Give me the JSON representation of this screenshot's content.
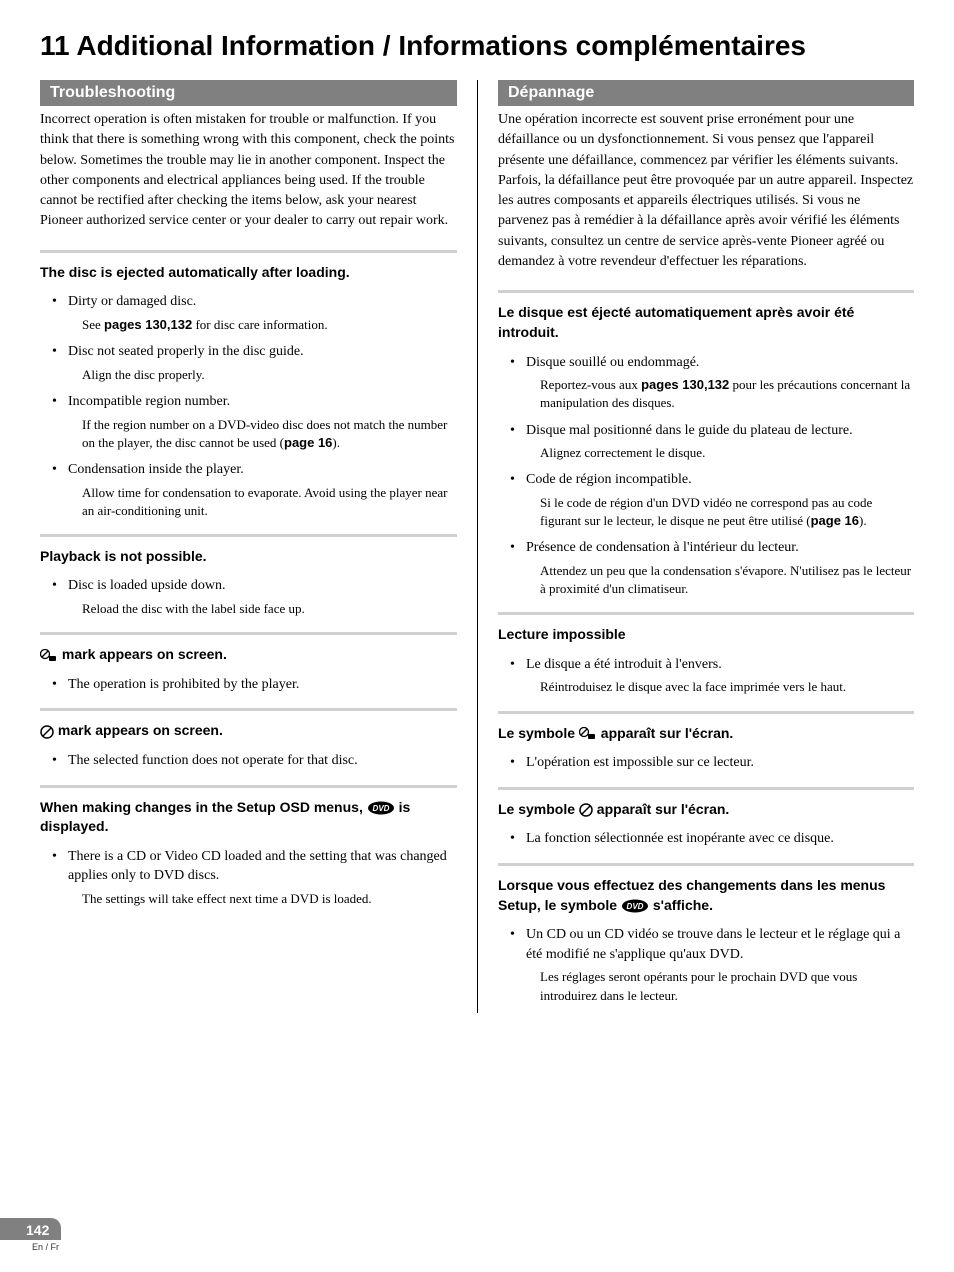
{
  "chapter": {
    "number": "11",
    "title": "Additional Information / Informations complémentaires"
  },
  "left": {
    "header": "Troubleshooting",
    "intro": "Incorrect operation is often mistaken for trouble or malfunction. If you think that there is something wrong with this component, check the points below. Sometimes the trouble may lie in another component. Inspect the other components and electrical appliances being used. If the trouble cannot be rectified after checking the items below, ask your nearest Pioneer authorized service center or your dealer to carry out repair work.",
    "sections": [
      {
        "title": "The disc is ejected automatically after loading.",
        "items": [
          {
            "text": "Dirty or damaged disc.",
            "sub_pre": "See ",
            "sub_bold": "pages 130,132",
            "sub_post": " for disc care information."
          },
          {
            "text": "Disc not seated properly in the disc guide.",
            "sub": "Align the disc properly."
          },
          {
            "text": "Incompatible region number.",
            "sub_pre": "If the region number on a DVD-video disc does not match the number on the player, the disc cannot be used (",
            "sub_bold": "page 16",
            "sub_post": ")."
          },
          {
            "text": "Condensation inside the player.",
            "sub": "Allow time for condensation to evaporate. Avoid using the player near an air-conditioning unit."
          }
        ]
      },
      {
        "title": "Playback is not possible.",
        "items": [
          {
            "text": "Disc is loaded upside down.",
            "sub": "Reload the disc with the label side face up."
          }
        ]
      },
      {
        "icon": "hand",
        "title_post": " mark appears on screen.",
        "items": [
          {
            "text": "The operation is prohibited by the player."
          }
        ]
      },
      {
        "icon": "prohibit",
        "title_post": " mark appears on screen.",
        "items": [
          {
            "text": "The selected function does not operate for that disc."
          }
        ]
      },
      {
        "title_pre": "When making changes in the Setup OSD menus, ",
        "icon": "dvd",
        "title_post": " is displayed.",
        "items": [
          {
            "text": "There is a CD or Video CD loaded and the setting that was changed applies only to DVD discs.",
            "sub": "The settings will take effect next time a DVD is loaded."
          }
        ]
      }
    ]
  },
  "right": {
    "header": "Dépannage",
    "intro": "Une opération incorrecte est souvent prise erronément pour une défaillance ou un dysfonctionnement. Si vous pensez que l'appareil présente une défaillance, commencez par vérifier les éléments suivants. Parfois, la défaillance peut être provoquée par un autre appareil. Inspectez les autres composants et appareils électriques utilisés. Si vous ne parvenez pas à remédier à la défaillance après avoir vérifié les éléments suivants, consultez un centre de service après-vente Pioneer agréé ou demandez à votre revendeur d'effectuer les réparations.",
    "sections": [
      {
        "title": "Le disque est éjecté automatiquement après avoir été introduit.",
        "items": [
          {
            "text": "Disque souillé ou endommagé.",
            "sub_pre": "Reportez-vous aux ",
            "sub_bold": "pages 130,132",
            "sub_post": " pour les précautions concernant la manipulation des disques."
          },
          {
            "text": "Disque mal positionné dans le guide du plateau de lecture.",
            "sub": "Alignez correctement le disque."
          },
          {
            "text": "Code de région incompatible.",
            "sub_pre": "Si le code de région d'un DVD vidéo ne correspond pas au code figurant sur le lecteur, le disque ne peut être utilisé (",
            "sub_bold": "page 16",
            "sub_post": ")."
          },
          {
            "text": "Présence de condensation à l'intérieur du lecteur.",
            "sub": "Attendez un peu que la condensation s'évapore. N'utilisez pas le lecteur à proximité d'un climatiseur."
          }
        ]
      },
      {
        "title": "Lecture impossible",
        "items": [
          {
            "text": "Le disque a été introduit à l'envers.",
            "sub": "Réintroduisez le disque avec la face imprimée vers le haut."
          }
        ]
      },
      {
        "title_pre": "Le symbole ",
        "icon": "hand",
        "title_post": " apparaît sur l'écran.",
        "items": [
          {
            "text": "L'opération est impossible sur ce lecteur."
          }
        ]
      },
      {
        "title_pre": "Le symbole ",
        "icon": "prohibit",
        "title_post": " apparaît sur l'écran.",
        "items": [
          {
            "text": "La fonction sélectionnée est inopérante avec ce disque."
          }
        ]
      },
      {
        "title_pre": "Lorsque vous effectuez des changements dans les menus Setup, le symbole ",
        "icon": "dvd",
        "title_post": " s'affiche.",
        "items": [
          {
            "text": "Un CD ou un CD vidéo se trouve dans le lecteur et le réglage qui a été modifié ne s'applique qu'aux DVD.",
            "sub": "Les réglages seront opérants pour le prochain DVD que vous introduirez dans le lecteur."
          }
        ]
      }
    ]
  },
  "footer": {
    "page": "142",
    "lang": "En / Fr"
  },
  "icons": {
    "hand": "hand-icon",
    "prohibit": "prohibit-icon",
    "dvd": "dvd-icon"
  }
}
